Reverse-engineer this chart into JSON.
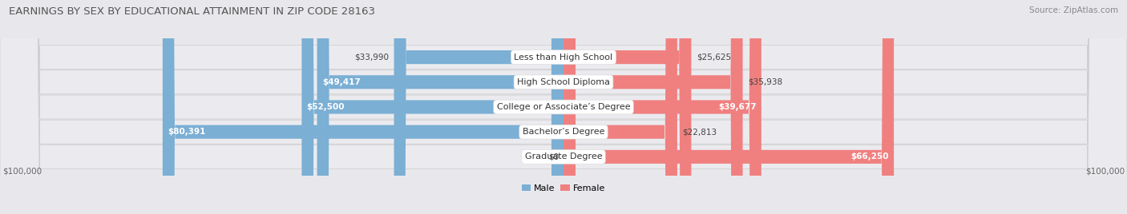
{
  "title": "EARNINGS BY SEX BY EDUCATIONAL ATTAINMENT IN ZIP CODE 28163",
  "source": "Source: ZipAtlas.com",
  "categories": [
    "Less than High School",
    "High School Diploma",
    "College or Associate’s Degree",
    "Bachelor’s Degree",
    "Graduate Degree"
  ],
  "male_values": [
    33990,
    49417,
    52500,
    80391,
    0
  ],
  "female_values": [
    25625,
    35938,
    39677,
    22813,
    66250
  ],
  "male_color": "#7bafd4",
  "female_color": "#f08080",
  "male_color_light": "#b8d4e8",
  "female_color_light": "#f5b8b8",
  "male_label": "Male",
  "female_label": "Female",
  "max_value": 100000,
  "bg_color": "#e8e8ec",
  "row_bg_color": "#f0f0f4",
  "xlabel_left": "$100,000",
  "xlabel_right": "$100,000",
  "title_fontsize": 9.5,
  "source_fontsize": 7.5,
  "label_fontsize": 8,
  "value_fontsize": 7.5,
  "tick_fontsize": 7.5
}
